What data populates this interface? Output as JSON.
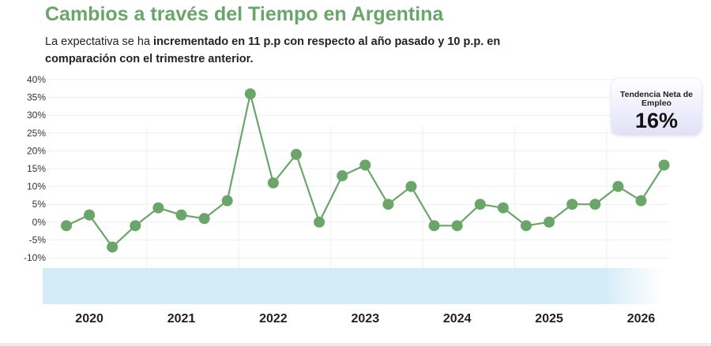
{
  "header": {
    "title": "Cambios a través del Tiempo en Argentina",
    "subtitle_pre": "La expectativa se ha ",
    "subtitle_bold1": "incrementado en 11 p.p con respecto al año pasado y 10 p.p. en comparación con  el trimestre anterior."
  },
  "badge": {
    "label": "Tendencia Neta de Empleo",
    "value": "16%"
  },
  "colors": {
    "series": "#6aa56a",
    "band": "#d4ebf8",
    "grid": "#efefef"
  },
  "chart_data": {
    "type": "line",
    "title": "Cambios a través del Tiempo en Argentina",
    "ylim": [
      -10,
      40
    ],
    "yticks": [
      -10,
      -5,
      0,
      5,
      10,
      15,
      20,
      25,
      30,
      35,
      40
    ],
    "ytick_labels": [
      "-10%",
      "-5%",
      "0%",
      "5%",
      "10%",
      "15%",
      "20%",
      "25%",
      "30%",
      "35%",
      "40%"
    ],
    "years": [
      "2020",
      "2021",
      "2022",
      "2023",
      "2024",
      "2025",
      "2026"
    ],
    "quarters_per_year": 4,
    "grid": true,
    "series": [
      {
        "values": [
          -1,
          2,
          -7,
          -1,
          4,
          2,
          1,
          6,
          36,
          11,
          19,
          0,
          13,
          16,
          5,
          10,
          -1,
          -1,
          5,
          4,
          -1,
          0,
          5,
          5,
          10,
          6,
          16
        ]
      }
    ]
  }
}
